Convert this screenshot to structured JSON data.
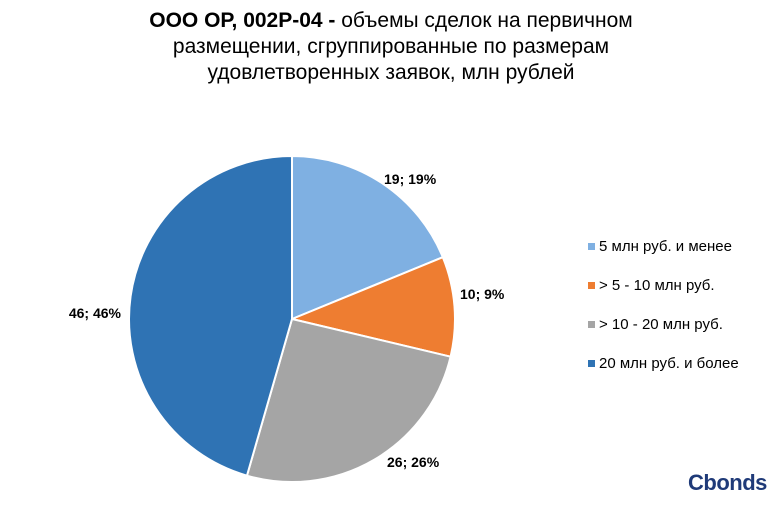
{
  "chart_data": {
    "type": "pie",
    "title_bold": "ООО ОР, 002P-04 -",
    "title_rest_line1": " объемы сделок на первичном",
    "title_line2": "размещении, сгруппированные по размерам",
    "title_line3": "удовлетворенных заявок, млн рублей",
    "slices": [
      {
        "name": "5 млн руб. и менее",
        "value": 19,
        "percent": 19,
        "label": "19; 19%",
        "color": "#7fb0e2"
      },
      {
        "name": "> 5 - 10 млн руб.",
        "value": 10,
        "percent": 9,
        "label": "10; 9%",
        "color": "#ee7d31"
      },
      {
        "name": "> 10 - 20 млн руб.",
        "value": 26,
        "percent": 26,
        "label": "26; 26%",
        "color": "#a5a5a5"
      },
      {
        "name": "20 млн руб. и более",
        "value": 46,
        "percent": 46,
        "label": "46; 46%",
        "color": "#2f73b4"
      }
    ],
    "legend_position": "right"
  },
  "brand": {
    "logo_text": "Cbonds",
    "logo_color": "#1f3a78"
  }
}
